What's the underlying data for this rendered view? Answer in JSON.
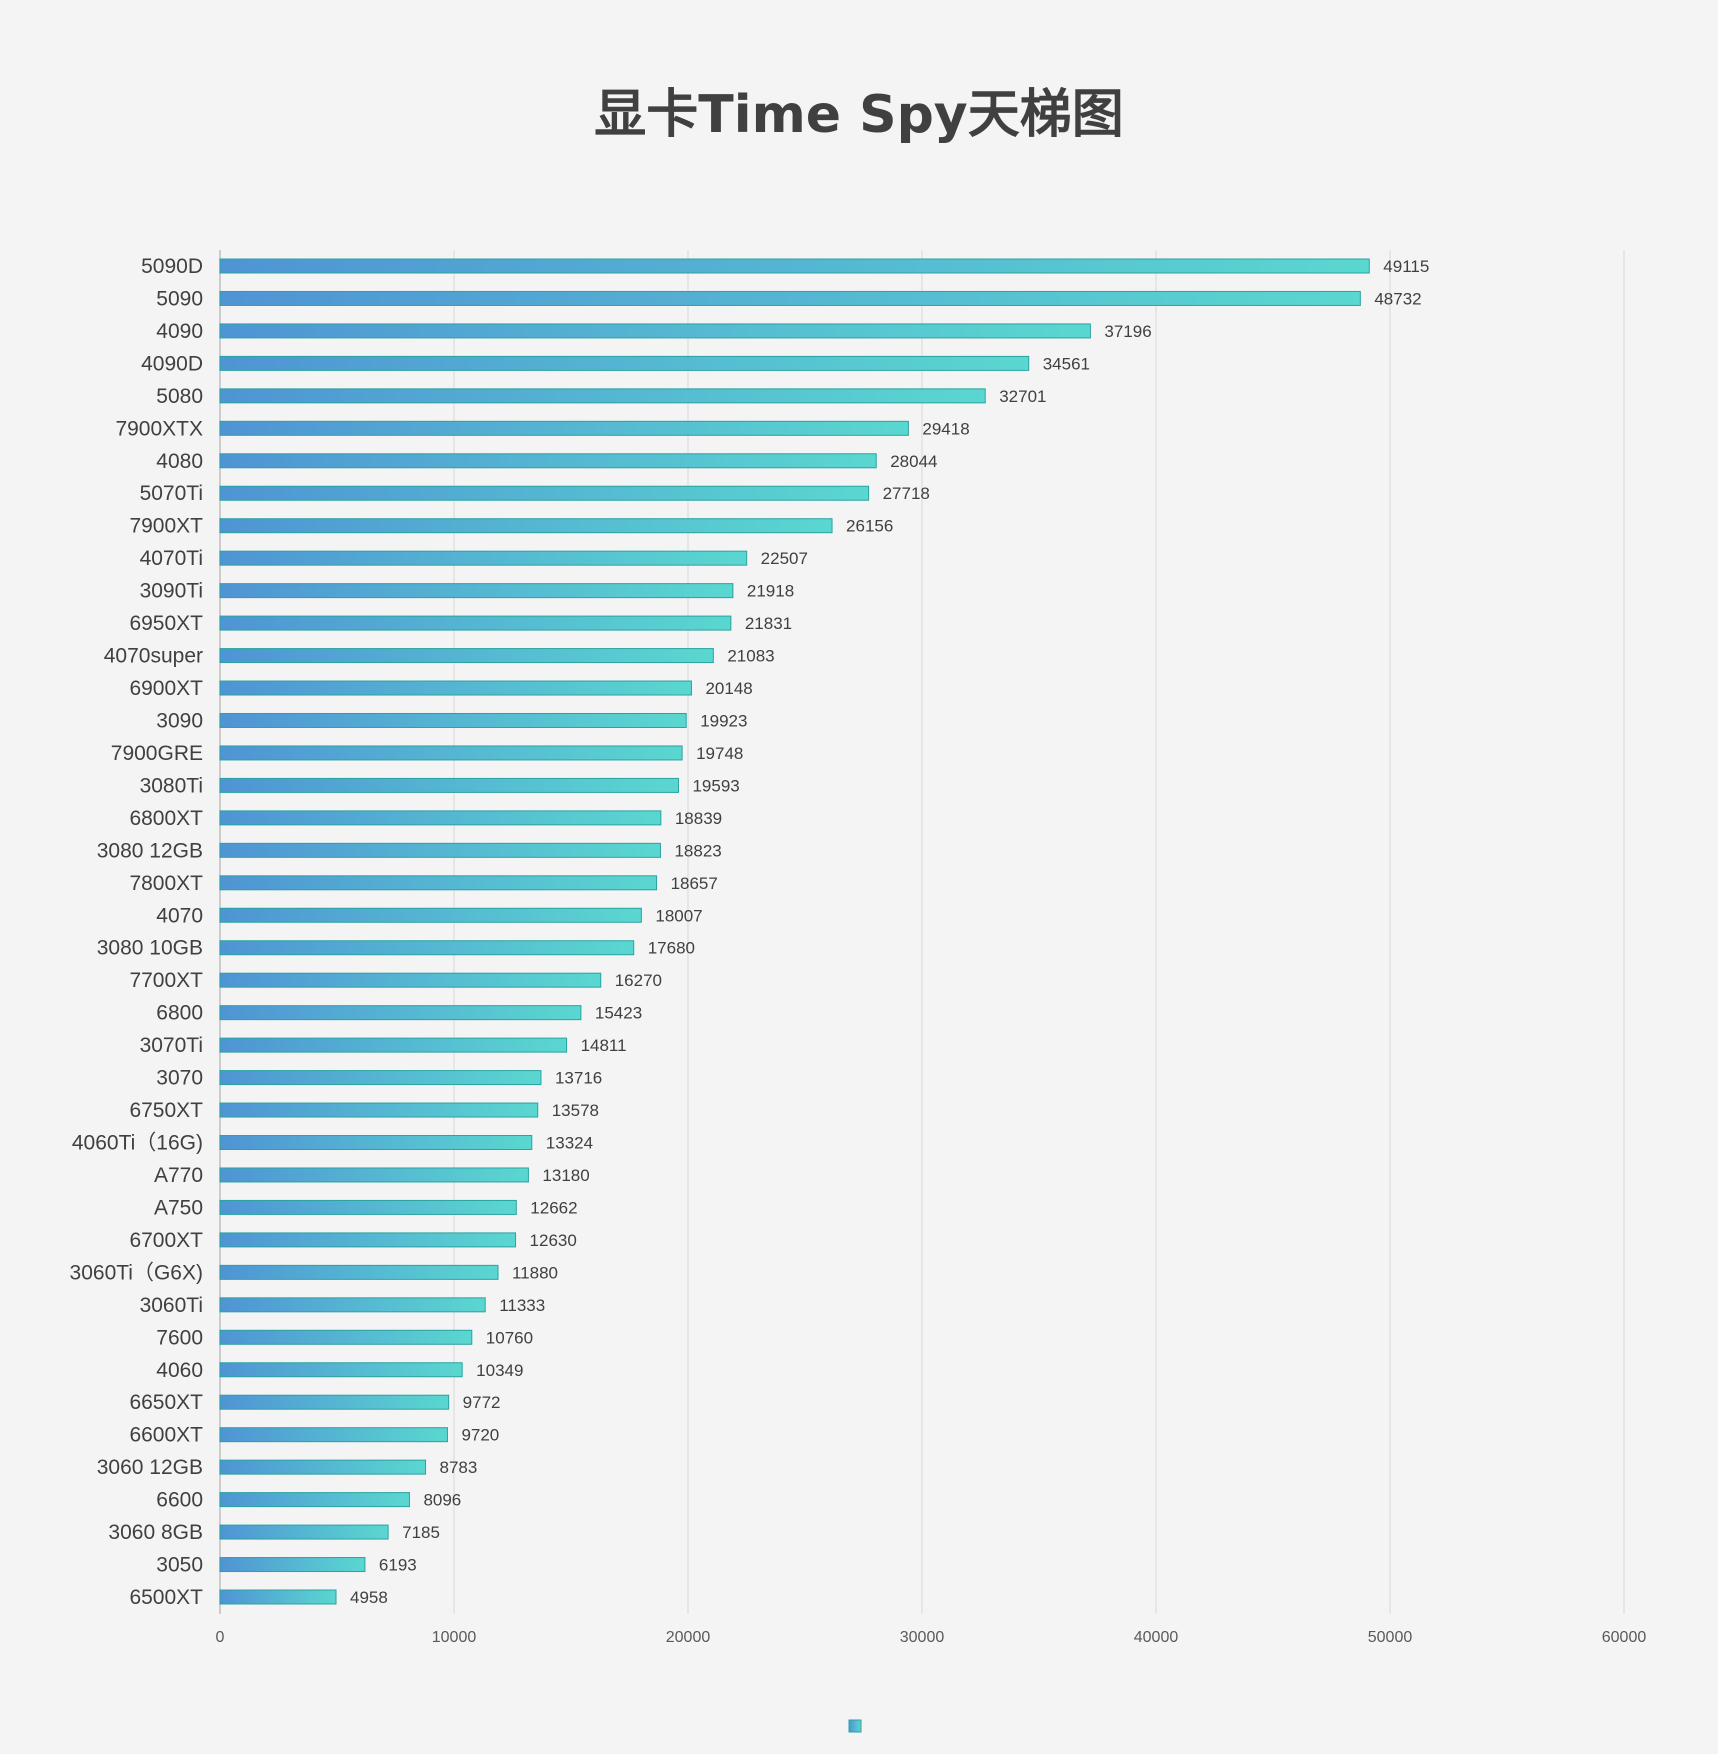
{
  "chart_data": {
    "type": "bar",
    "orientation": "horizontal",
    "title": "显卡Time Spy天梯图",
    "xlabel": "",
    "ylabel": "",
    "xlim": [
      0,
      60000
    ],
    "x_ticks": [
      "0",
      "10000",
      "20000",
      "30000",
      "40000",
      "50000",
      "60000"
    ],
    "grid": "vertical",
    "legend": "bottom",
    "categories": [
      "5090D",
      "5090",
      "4090",
      "4090D",
      "5080",
      "7900XTX",
      "4080",
      "5070Ti",
      "7900XT",
      "4070Ti",
      "3090Ti",
      "6950XT",
      "4070super",
      "6900XT",
      "3090",
      "7900GRE",
      "3080Ti",
      "6800XT",
      "3080 12GB",
      "7800XT",
      "4070",
      "3080 10GB",
      "7700XT",
      "6800",
      "3070Ti",
      "3070",
      "6750XT",
      "4060Ti（16G)",
      "A770",
      "A750",
      "6700XT",
      "3060Ti（G6X)",
      "3060Ti",
      "7600",
      "4060",
      "6650XT",
      "6600XT",
      "3060 12GB",
      "6600",
      "3060 8GB",
      "3050",
      "6500XT"
    ],
    "series": [
      {
        "values": [
          49115,
          48732,
          37196,
          34561,
          32701,
          29418,
          28044,
          27718,
          26156,
          22507,
          21918,
          21831,
          21083,
          20148,
          19923,
          19748,
          19593,
          18839,
          18823,
          18657,
          18007,
          17680,
          16270,
          15423,
          14811,
          13716,
          13578,
          13324,
          13180,
          12662,
          12630,
          11880,
          11333,
          10760,
          10349,
          9772,
          9720,
          8783,
          8096,
          7185,
          6193,
          4958
        ],
        "color_start": "#4f94d4",
        "color_end": "#5ad7d0",
        "stroke": "#2aa3a0"
      }
    ],
    "data_labels": [
      "49115",
      "48732",
      "37196",
      "34561",
      "32701",
      "29418",
      "28044",
      "27718",
      "26156",
      "22507",
      "21918",
      "21831",
      "21083",
      "20148",
      "19923",
      "19748",
      "19593",
      "18839",
      "18823",
      "18657",
      "18007",
      "17680",
      "16270",
      "15423",
      "14811",
      "13716",
      "13578",
      "13324",
      "13180",
      "12662",
      "12630",
      "11880",
      "11333",
      "10760",
      "10349",
      "9772",
      "9720",
      "8783",
      "8096",
      "7185",
      "6193",
      "4958"
    ]
  },
  "colors": {
    "background": "#f4f4f4",
    "title": "#404040",
    "category_label": "#404040",
    "value_label": "#404040",
    "tick_label": "#595959",
    "grid": "#d9d9d9",
    "axis": "#bfbfbf"
  }
}
